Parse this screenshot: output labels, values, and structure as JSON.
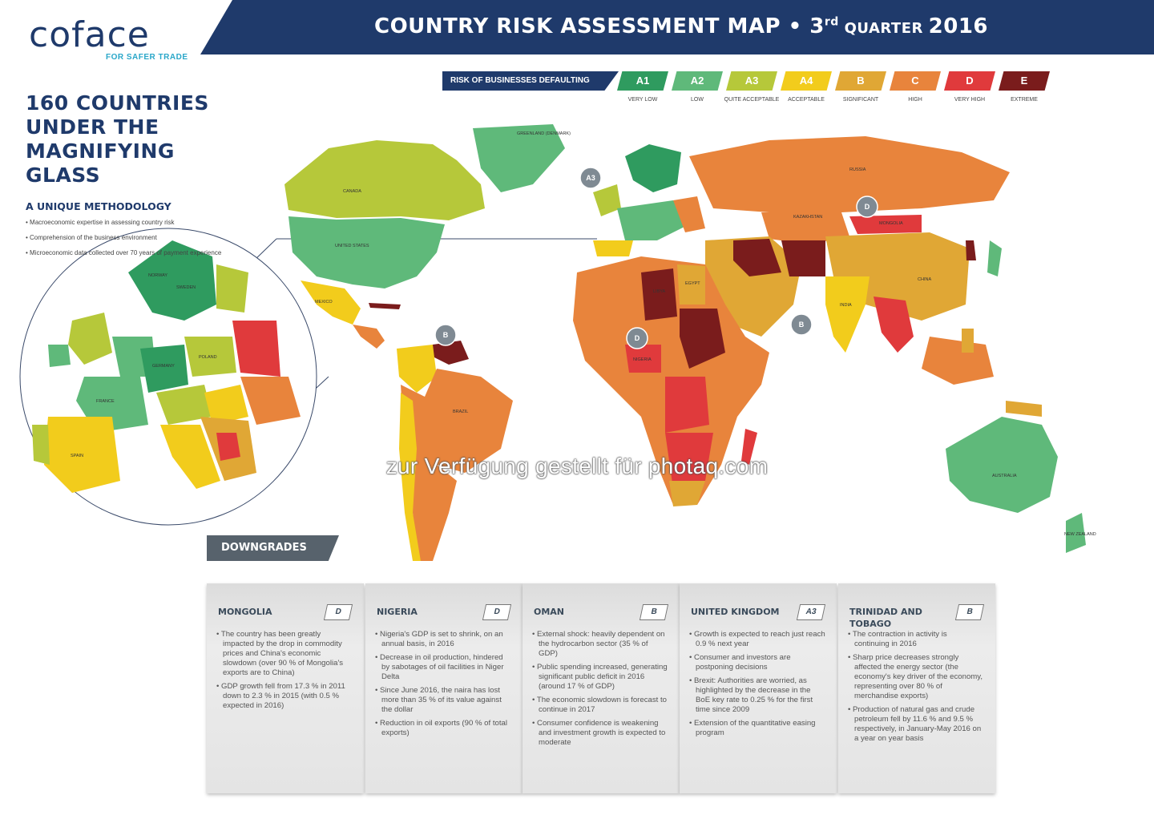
{
  "header": {
    "logo_text": "coface",
    "logo_tagline": "FOR SAFER TRADE",
    "title_part1": "COUNTRY RISK ASSESSMENT MAP • 3",
    "title_sup": "rd",
    "title_part2": " QUARTER ",
    "title_year": "2016"
  },
  "legend": {
    "label": "RISK OF BUSINESSES DEFAULTING",
    "items": [
      {
        "code": "A1",
        "label": "VERY LOW",
        "color": "#2f9b5f"
      },
      {
        "code": "A2",
        "label": "LOW",
        "color": "#5fb97a"
      },
      {
        "code": "A3",
        "label": "QUITE ACCEPTABLE",
        "color": "#b6c83a"
      },
      {
        "code": "A4",
        "label": "ACCEPTABLE",
        "color": "#f2cc1c"
      },
      {
        "code": "B",
        "label": "SIGNIFICANT",
        "color": "#e0a735"
      },
      {
        "code": "C",
        "label": "HIGH",
        "color": "#e8843c"
      },
      {
        "code": "D",
        "label": "VERY HIGH",
        "color": "#e03a3c"
      },
      {
        "code": "E",
        "label": "EXTREME",
        "color": "#7a1c1c"
      }
    ]
  },
  "intro": {
    "headline_lines": [
      "160 COUNTRIES",
      "UNDER THE",
      "MAGNIFYING",
      "GLASS"
    ],
    "method_title": "A UNIQUE METHODOLOGY",
    "method_points": [
      "Macroeconomic expertise in assessing country risk",
      "Comprehension of the business environment",
      "Microeconomic data collected over 70 years of payment experience"
    ]
  },
  "map": {
    "country_labels": {
      "canada": "CANADA",
      "united_states": "UNITED STATES",
      "mexico": "MEXICO",
      "brazil": "BRAZIL",
      "greenland": "GREENLAND (DENMARK)",
      "russia": "RUSSIA",
      "kazakhstan": "KAZAKHSTAN",
      "mongolia": "MONGOLIA",
      "china": "CHINA",
      "india": "INDIA",
      "australia": "AUSTRALIA",
      "libya": "LIBYA",
      "egypt": "EGYPT",
      "nigeria": "NIGERIA",
      "norway": "NORWAY",
      "sweden": "SWEDEN",
      "germany": "GERMANY",
      "france": "FRANCE",
      "spain": "SPAIN",
      "poland": "POLAND",
      "new_zealand": "NEW ZEALAND"
    },
    "callouts": [
      {
        "id": "uk",
        "grade": "A3"
      },
      {
        "id": "trinidad",
        "grade": "B"
      },
      {
        "id": "nigeria",
        "grade": "D"
      },
      {
        "id": "mongolia",
        "grade": "D"
      },
      {
        "id": "oman",
        "grade": "B"
      }
    ]
  },
  "watermark": "zur Verfügung gestellt für photaq.com",
  "downgrades": {
    "tab_label": "DOWNGRADES",
    "panels": [
      {
        "country": "MONGOLIA",
        "grade": "D",
        "points": [
          "The country has been greatly impacted by the drop in commodity prices and China's economic slowdown (over 90 % of Mongolia's exports are to China)",
          "GDP growth fell from 17.3 % in 2011 down to 2.3 % in 2015 (with 0.5 % expected in 2016)"
        ]
      },
      {
        "country": "NIGERIA",
        "grade": "D",
        "points": [
          "Nigeria's GDP is set to shrink, on an annual basis, in 2016",
          "Decrease in oil production, hindered by sabotages of oil facilities in Niger Delta",
          "Since June 2016, the naira has lost more than 35 % of its value against the dollar",
          "Reduction in oil exports (90 % of total exports)"
        ]
      },
      {
        "country": "OMAN",
        "grade": "B",
        "points": [
          "External shock: heavily dependent on the hydrocarbon sector (35 % of GDP)",
          "Public spending increased, generating significant public deficit in 2016 (around 17 % of GDP)",
          "The economic slowdown is forecast to continue in 2017",
          "Consumer confidence is weakening and investment growth is expected to moderate"
        ]
      },
      {
        "country": "UNITED KINGDOM",
        "grade": "A3",
        "points": [
          "Growth is expected to reach just reach 0.9 % next year",
          "Consumer and investors are postponing decisions",
          "Brexit: Authorities are worried, as highlighted by the decrease in the BoE key rate to 0.25 % for the first time since 2009",
          "Extension of the quantitative easing program"
        ]
      },
      {
        "country": "TRINIDAD AND TOBAGO",
        "grade": "B",
        "points": [
          "The contraction in activity is continuing in 2016",
          "Sharp price decreases strongly affected the energy sector (the economy's key driver of the economy, representing over 80 % of merchandise exports)",
          "Production of natural gas and crude petroleum fell by 11.6 % and 9.5 % respectively, in January-May 2016 on a year on year basis"
        ]
      }
    ]
  }
}
